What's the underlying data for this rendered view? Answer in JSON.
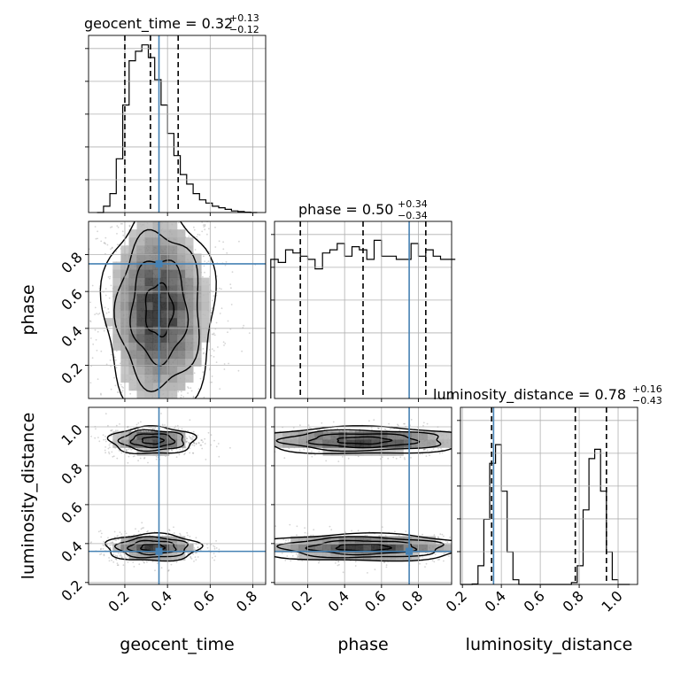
{
  "chart_data": {
    "type": "corner",
    "truth_color": "#4682b4",
    "parameters": [
      {
        "name": "geocent_time",
        "range": [
          0.03,
          0.86
        ],
        "ticks": [
          0.2,
          0.4,
          0.6,
          0.8
        ],
        "tick_labels": [
          "0.2",
          "0.4",
          "0.6",
          "0.8"
        ],
        "truth": 0.36,
        "quantiles": [
          0.2,
          0.32,
          0.45
        ]
      },
      {
        "name": "phase",
        "range": [
          0.02,
          0.98
        ],
        "ticks": [
          0.2,
          0.4,
          0.6,
          0.8
        ],
        "tick_labels": [
          "0.2",
          "0.4",
          "0.6",
          "0.8"
        ],
        "truth": 0.75,
        "quantiles": [
          0.16,
          0.5,
          0.84
        ]
      },
      {
        "name": "luminosity_distance",
        "range": [
          0.19,
          1.1
        ],
        "ticks": [
          0.2,
          0.4,
          0.6,
          0.8,
          1.0
        ],
        "tick_labels": [
          "0.2",
          "0.4",
          "0.6",
          "0.8",
          "1.0"
        ],
        "truth": 0.36,
        "quantiles": [
          0.35,
          0.78,
          0.94
        ]
      }
    ],
    "titles": [
      {
        "main": "geocent_time = 0.32",
        "sup": "+0.13",
        "sub": "−0.12"
      },
      {
        "main": "phase = 0.50",
        "sup": "+0.34",
        "sub": "−0.34"
      },
      {
        "main": "luminosity_distance = 0.78",
        "sup": "+0.16",
        "sub": "−0.43"
      }
    ],
    "histograms": [
      {
        "bin_edges": [
          0.07,
          0.1,
          0.13,
          0.16,
          0.19,
          0.22,
          0.25,
          0.28,
          0.31,
          0.34,
          0.37,
          0.4,
          0.43,
          0.46,
          0.49,
          0.52,
          0.55,
          0.58,
          0.61,
          0.64,
          0.67,
          0.7,
          0.73,
          0.76,
          0.79,
          0.82
        ],
        "counts": [
          0,
          2,
          6,
          17,
          34,
          48,
          51,
          53,
          49,
          42,
          34,
          25,
          18,
          12,
          9,
          6,
          4,
          3,
          2,
          1.5,
          1,
          0.5,
          0.3,
          0.1,
          0
        ],
        "ymax": 56
      },
      {
        "bin_edges": [
          0.0,
          0.04,
          0.08,
          0.12,
          0.16,
          0.2,
          0.24,
          0.28,
          0.32,
          0.36,
          0.4,
          0.44,
          0.48,
          0.52,
          0.56,
          0.6,
          0.64,
          0.68,
          0.72,
          0.76,
          0.8,
          0.84,
          0.88,
          0.92,
          0.96,
          1.0
        ],
        "counts": [
          44,
          43,
          47,
          46,
          45,
          44,
          41,
          46,
          47,
          49,
          45,
          48,
          47,
          44,
          50,
          45,
          45,
          44,
          44,
          49,
          45,
          47,
          45,
          44,
          44
        ],
        "ymax": 56
      },
      {
        "bin_edges": [
          0.19,
          0.22,
          0.25,
          0.28,
          0.31,
          0.34,
          0.37,
          0.4,
          0.43,
          0.46,
          0.49,
          0.52,
          0.55,
          0.58,
          0.61,
          0.64,
          0.67,
          0.7,
          0.73,
          0.76,
          0.79,
          0.82,
          0.85,
          0.88,
          0.91,
          0.94,
          0.97,
          1.0,
          1.03,
          1.06
        ],
        "counts": [
          0,
          0,
          0.1,
          4,
          14,
          26,
          30,
          20,
          7,
          1,
          0,
          0,
          0,
          0,
          0,
          0,
          0,
          0,
          0,
          0.4,
          4,
          16,
          27,
          29,
          20,
          7,
          1,
          0,
          0
        ],
        "ymax": 38
      }
    ],
    "scatter_regions": [
      {
        "x": 0,
        "y": 1,
        "cx": [
          0.36
        ],
        "cy": [
          0.5
        ],
        "sx": [
          0.13
        ],
        "sy": [
          0.28
        ],
        "n": 1500
      },
      {
        "x": 0,
        "y": 2,
        "cx": [
          0.33,
          0.33
        ],
        "cy": [
          0.93,
          0.38
        ],
        "sx": [
          0.1,
          0.11
        ],
        "sy": [
          0.035,
          0.035
        ],
        "n": 1400
      },
      {
        "x": 1,
        "y": 2,
        "cx": [
          0.5,
          0.5
        ],
        "cy": [
          0.93,
          0.38
        ],
        "sx": [
          0.29,
          0.29
        ],
        "sy": [
          0.035,
          0.035
        ],
        "n": 1400
      }
    ]
  }
}
